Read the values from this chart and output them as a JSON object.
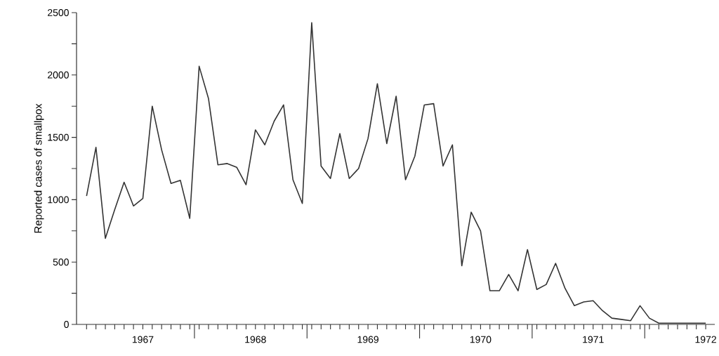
{
  "chart_data": {
    "type": "line",
    "ylabel": "Reported cases of smallpox",
    "color": "#333333",
    "categories": [
      null,
      null,
      null,
      null,
      null,
      null,
      "1967",
      null,
      null,
      null,
      null,
      null,
      null,
      null,
      null,
      null,
      null,
      null,
      "1968",
      null,
      null,
      null,
      null,
      null,
      null,
      null,
      null,
      null,
      null,
      null,
      "1969",
      null,
      null,
      null,
      null,
      null,
      null,
      null,
      null,
      null,
      null,
      null,
      "1970",
      null,
      null,
      null,
      null,
      null,
      null,
      null,
      null,
      null,
      null,
      null,
      "1971",
      null,
      null,
      null,
      null,
      null,
      null,
      null,
      null,
      null,
      null,
      null,
      "1972"
    ],
    "values": [
      1030,
      1420,
      690,
      920,
      1140,
      950,
      1010,
      1750,
      1400,
      1130,
      1155,
      850,
      2070,
      1810,
      1280,
      1290,
      1260,
      1120,
      1560,
      1440,
      1630,
      1760,
      1160,
      970,
      2420,
      1270,
      1170,
      1530,
      1170,
      1250,
      1490,
      1930,
      1450,
      1830,
      1160,
      1350,
      1760,
      1770,
      1270,
      1440,
      470,
      900,
      750,
      270,
      270,
      400,
      270,
      600,
      280,
      320,
      490,
      290,
      150,
      180,
      190,
      110,
      50,
      40,
      30,
      150,
      50,
      10,
      10,
      10,
      10,
      10,
      10
    ],
    "ylim": [
      0,
      2500
    ],
    "yticks": [
      0,
      500,
      1000,
      1500,
      2000,
      2500,
      {
        "value": 250,
        "label": null
      },
      {
        "value": 750,
        "label": null
      },
      {
        "value": 1250,
        "label": null
      },
      {
        "value": 1750,
        "label": null
      },
      {
        "value": 2250,
        "label": null
      }
    ]
  }
}
